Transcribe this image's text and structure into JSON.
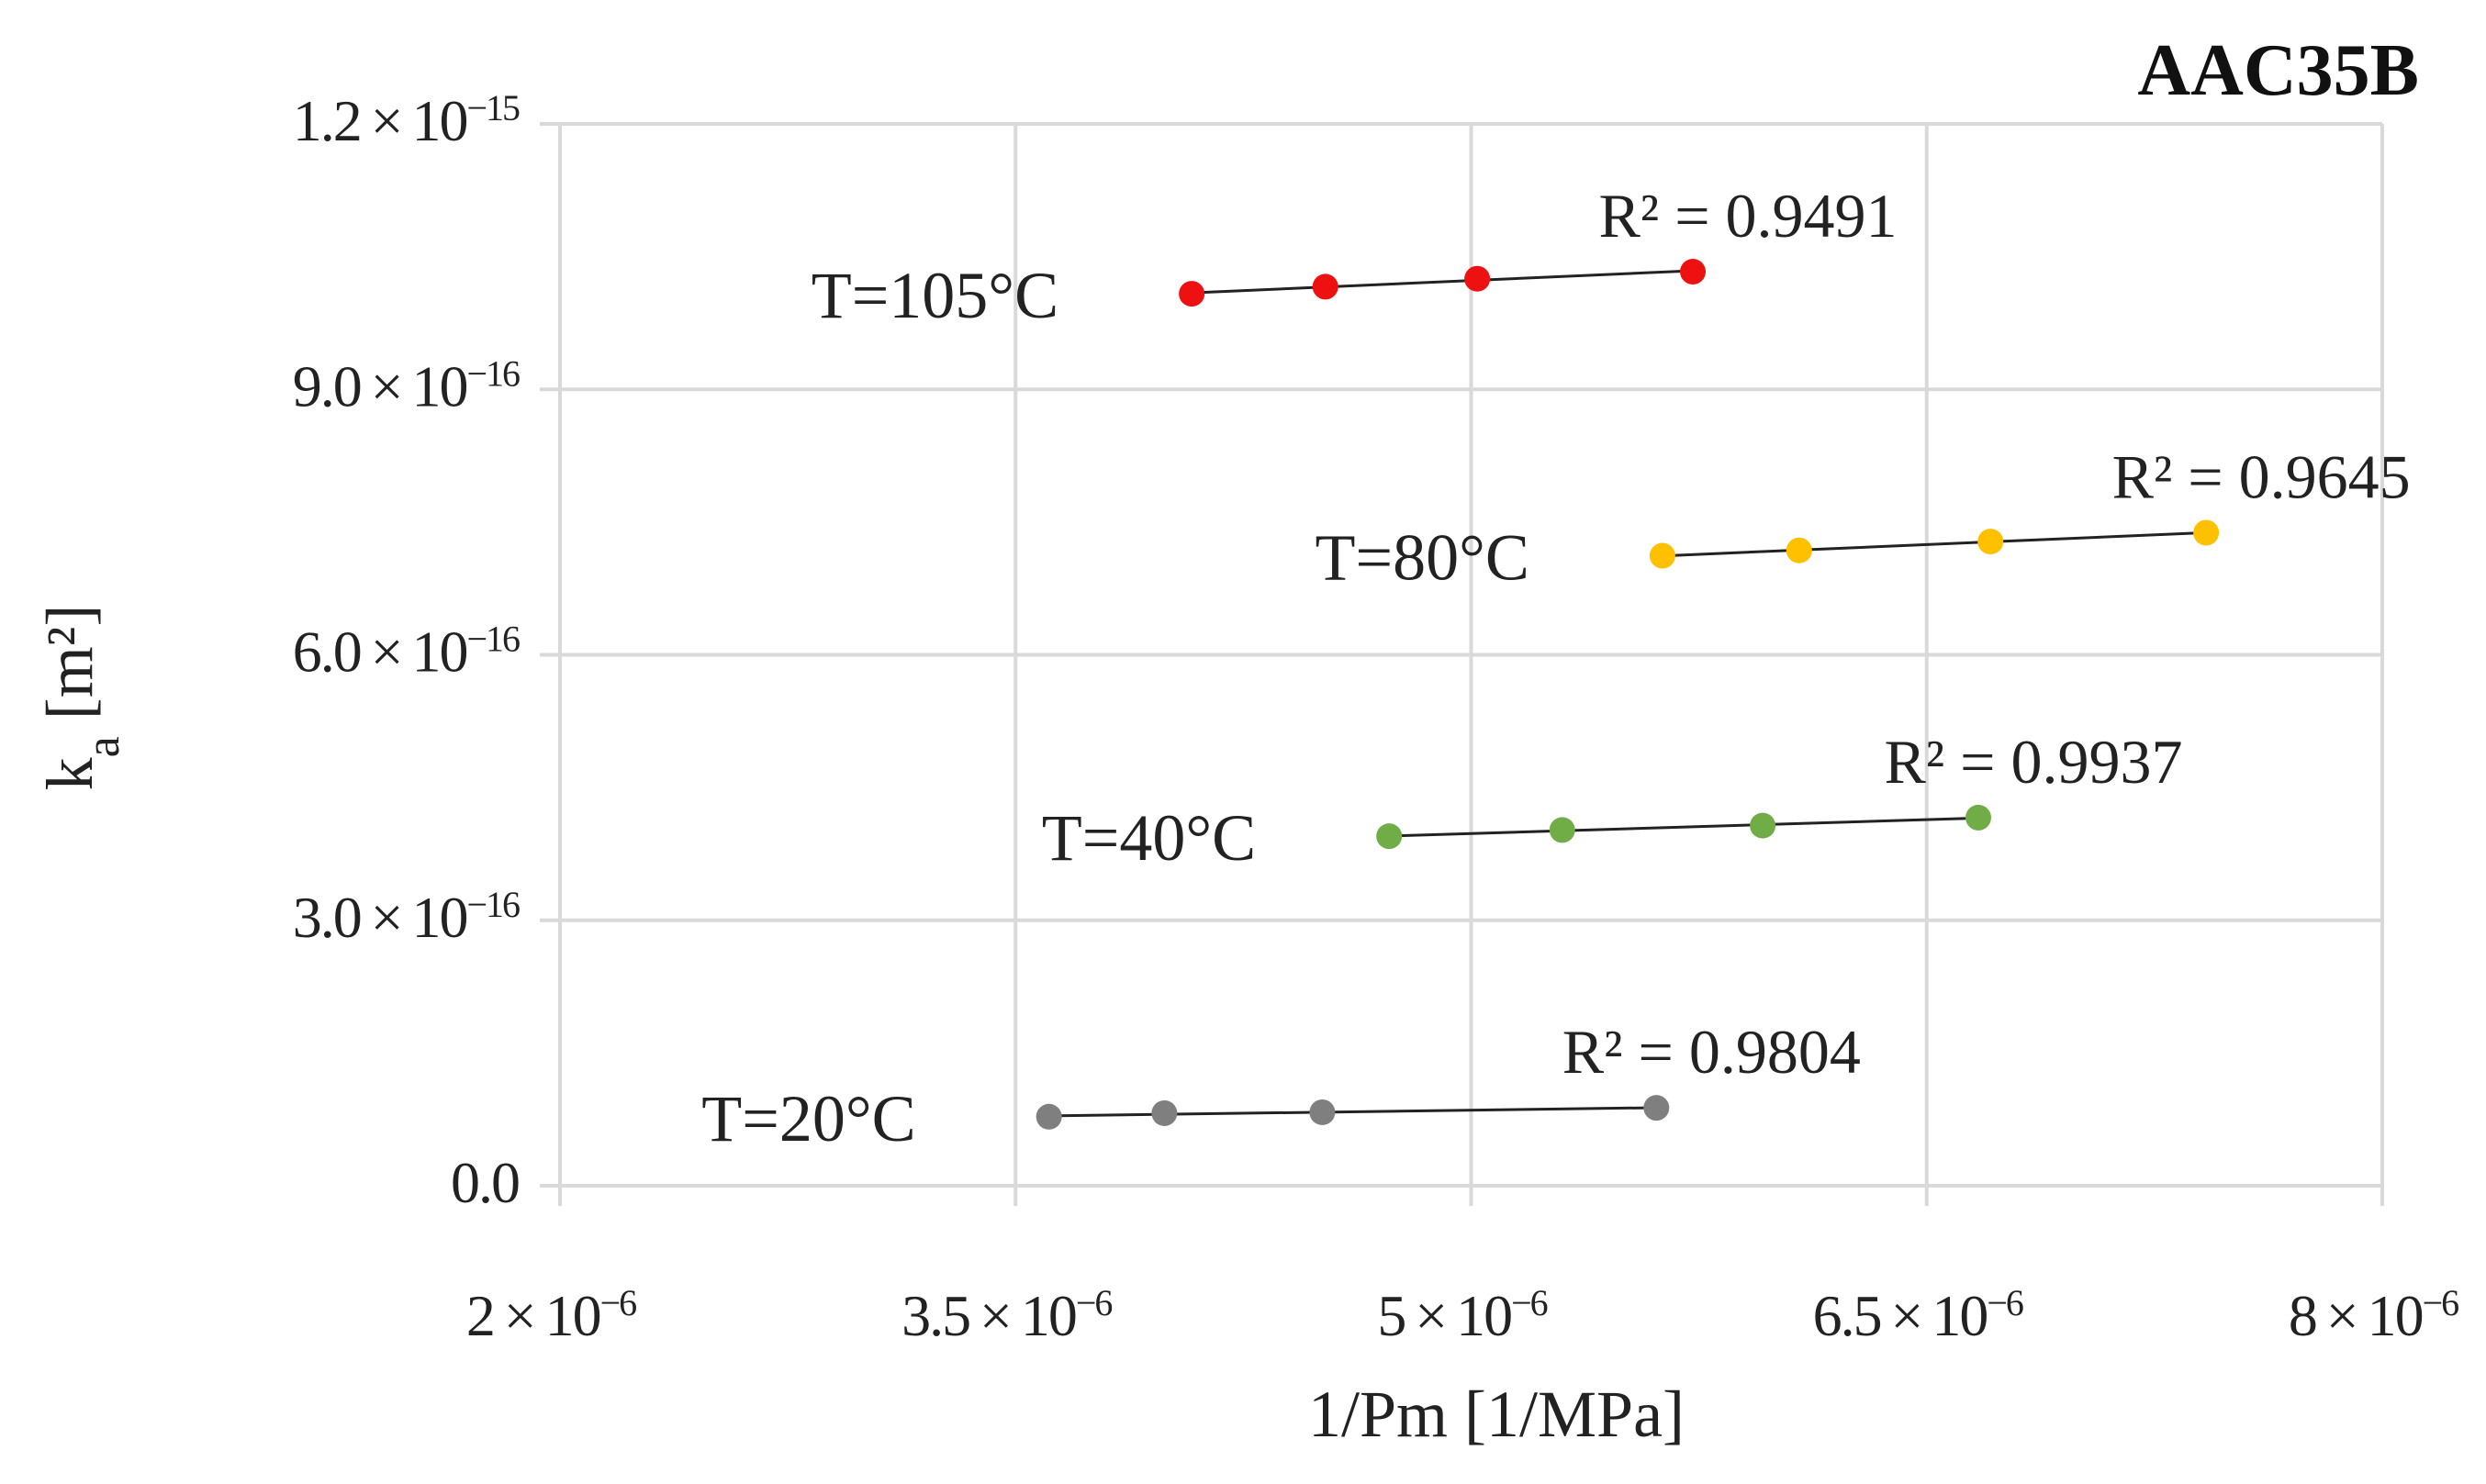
{
  "chart_data": {
    "type": "scatter",
    "title": "AAC35B",
    "xlabel": "1/Pm [1/MPa]",
    "ylabel": {
      "main": "k",
      "sub": "a",
      "unit": " [m²]"
    },
    "xlim": [
      2e-06,
      8e-06
    ],
    "ylim": [
      0,
      1.2e-15
    ],
    "x_ticks": [
      {
        "value": 2e-06,
        "mantissa": "2",
        "exponent": "−6"
      },
      {
        "value": 3.5e-06,
        "mantissa": "3.5",
        "exponent": "−6"
      },
      {
        "value": 5e-06,
        "mantissa": "5",
        "exponent": "−6"
      },
      {
        "value": 6.5e-06,
        "mantissa": "6.5",
        "exponent": "−6"
      },
      {
        "value": 8e-06,
        "mantissa": "8",
        "exponent": "−6"
      }
    ],
    "y_ticks": [
      {
        "value": 0,
        "mantissa": "0.0",
        "exponent": ""
      },
      {
        "value": 3e-16,
        "mantissa": "3.0",
        "exponent": "−16"
      },
      {
        "value": 6e-16,
        "mantissa": "6.0",
        "exponent": "−16"
      },
      {
        "value": 9e-16,
        "mantissa": "9.0",
        "exponent": "−16"
      },
      {
        "value": 1.2e-15,
        "mantissa": "1.2",
        "exponent": "−15"
      }
    ],
    "times_sign": "×",
    "tick_base": "10",
    "grid": true,
    "series": [
      {
        "name": "T=105°C",
        "color": "#ee1111",
        "r2": "R² = 0.9491",
        "x": [
          4.08e-06,
          4.52e-06,
          5.02e-06,
          5.73e-06
        ],
        "y": [
          1.008e-15,
          1.016e-15,
          1.025e-15,
          1.033e-15
        ]
      },
      {
        "name": "T=80°C",
        "color": "#ffc000",
        "r2": "R² = 0.9645",
        "x": [
          5.63e-06,
          6.08e-06,
          6.71e-06,
          7.42e-06
        ],
        "y": [
          7.12e-16,
          7.18e-16,
          7.28e-16,
          7.38e-16
        ]
      },
      {
        "name": "T=40°C",
        "color": "#70ad47",
        "r2": "R² = 0.9937",
        "x": [
          4.73e-06,
          5.3e-06,
          5.96e-06,
          6.67e-06
        ],
        "y": [
          3.95e-16,
          4.02e-16,
          4.07e-16,
          4.16e-16
        ]
      },
      {
        "name": "T=20°C",
        "color": "#7f7f7f",
        "r2": "R² = 0.9804",
        "x": [
          3.61e-06,
          3.99e-06,
          4.51e-06,
          5.61e-06
        ],
        "y": [
          7.8e-17,
          8.2e-17,
          8.3e-17,
          8.8e-17
        ]
      }
    ]
  }
}
